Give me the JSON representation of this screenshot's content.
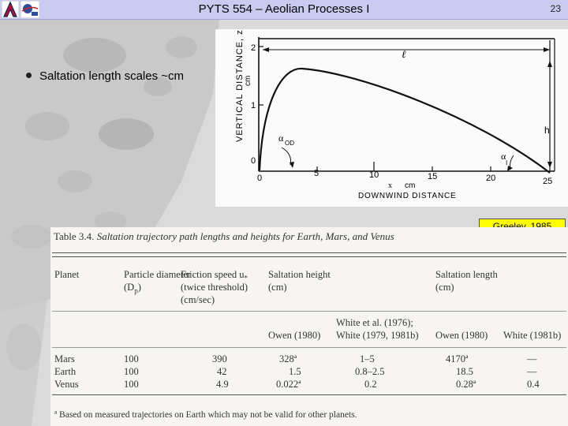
{
  "header": {
    "title": "PYTS 554 – Aeolian Processes I",
    "page_number": "23"
  },
  "bullet": {
    "text": "Saltation length scales ~cm"
  },
  "figure": {
    "y_axis_label": "VERTICAL DISTANCE, z",
    "y_unit": "cm",
    "y_ticks": [
      "2",
      "1",
      "0"
    ],
    "x_ticks": [
      "0",
      "5",
      "10",
      "15",
      "20",
      "25"
    ],
    "x_var": "x",
    "x_unit": "cm",
    "x_axis_label": "DOWNWIND DISTANCE",
    "length_label": "ℓ",
    "height_label": "h",
    "launch_angle_label": "α",
    "launch_angle_sub": "OD",
    "impact_angle_label": "α",
    "impact_angle_sub": "I"
  },
  "credit": "Greeley, 1985",
  "table": {
    "caption_number": "Table 3.4.",
    "caption_text": "Saltation trajectory path lengths and heights for Earth, Mars, and Venus",
    "headers": {
      "planet": "Planet",
      "diameter_1": "Particle diameter",
      "diameter_2": "(D",
      "diameter_sub": "p",
      "diameter_3": ")",
      "friction_1": "Friction speed u",
      "friction_sub": "*",
      "friction_2": "(twice threshold)",
      "friction_3": "(cm/sec)",
      "height_1": "Saltation height",
      "height_2": "(cm)",
      "length_1": "Saltation length",
      "length_2": "(cm)"
    },
    "subheaders": {
      "owen_h": "Owen (1980)",
      "white_a_1": "White et al. (1976);",
      "white_a_2": "White (1979, 1981b)",
      "owen_l": "Owen (1980)",
      "white_l": "White (1981b)"
    },
    "rows": [
      {
        "planet": "Mars",
        "diameter": "100",
        "friction": "390",
        "owen_h": "328ª",
        "white_h": "1–5",
        "owen_l": "4170ª",
        "white_l": "—"
      },
      {
        "planet": "Earth",
        "diameter": "100",
        "friction": "42",
        "owen_h": "1.5",
        "white_h": "0.8–2.5",
        "owen_l": "18.5",
        "white_l": "—"
      },
      {
        "planet": "Venus",
        "diameter": "100",
        "friction": "4.9",
        "owen_h": "0.022ª",
        "white_h": "0.2",
        "owen_l": "0.28ª",
        "white_l": "0.4"
      }
    ],
    "footnote": "ª Based on measured trajectories on Earth which may not be valid for other planets."
  }
}
